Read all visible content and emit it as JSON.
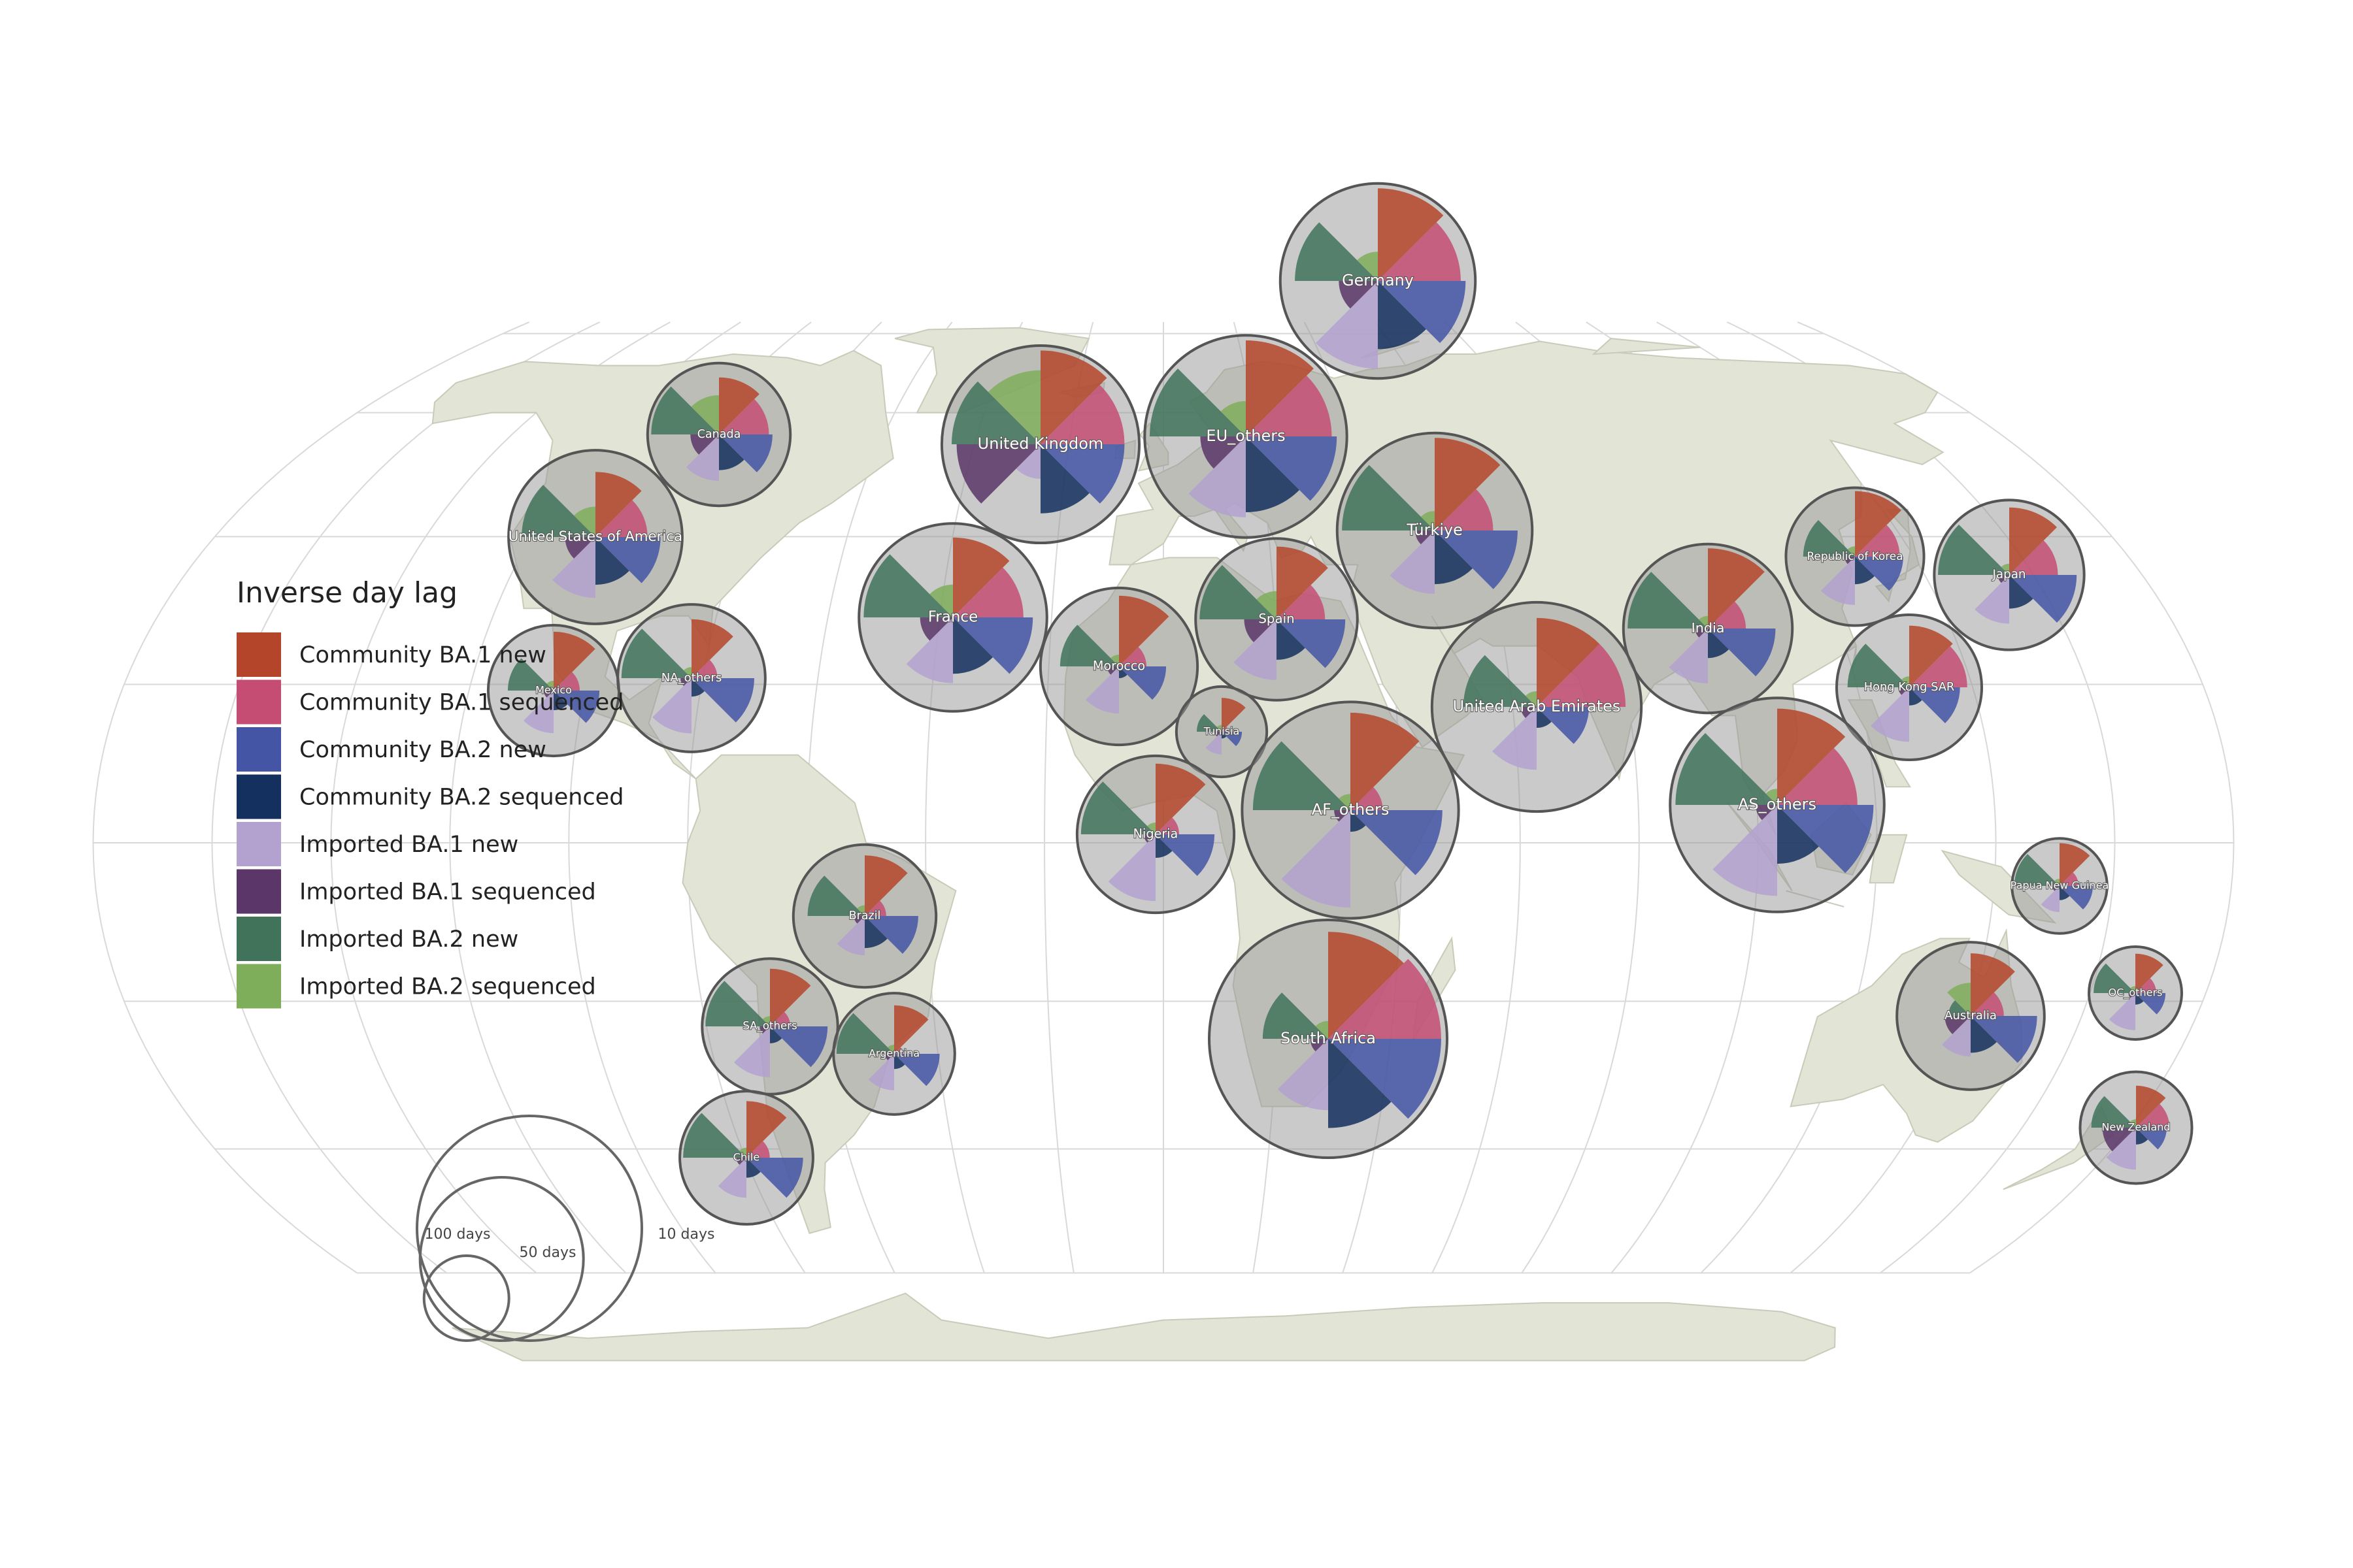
{
  "legend": {
    "title": "Inverse day lag",
    "items": [
      {
        "label": "Community BA.1 new",
        "color": "#b5452a"
      },
      {
        "label": "Community BA.1 sequenced",
        "color": "#c54d74"
      },
      {
        "label": "Community BA.2 new",
        "color": "#4455a6"
      },
      {
        "label": "Community BA.2 sequenced",
        "color": "#14305e"
      },
      {
        "label": "Imported BA.1 new",
        "color": "#b3a2cf"
      },
      {
        "label": "Imported BA.1 sequenced",
        "color": "#5a3669"
      },
      {
        "label": "Imported BA.2 new",
        "color": "#41735a"
      },
      {
        "label": "Imported BA.2 sequenced",
        "color": "#7fae5a"
      }
    ]
  },
  "size_legend": [
    {
      "label": "100 days",
      "value": 100
    },
    {
      "label": "50 days",
      "value": 50
    },
    {
      "label": "10 days",
      "value": 10
    }
  ],
  "regions": [
    {
      "name": "Germany",
      "lon": 10.5,
      "lat": 51.2,
      "total": 0.82,
      "slices": [
        0.95,
        0.85,
        0.9,
        0.7,
        0.9,
        0.4,
        0.85,
        0.3
      ]
    },
    {
      "name": "Canada",
      "lon": -100,
      "lat": 57,
      "total": 0.6,
      "slices": [
        0.8,
        0.7,
        0.75,
        0.5,
        0.65,
        0.4,
        0.95,
        0.55
      ]
    },
    {
      "name": "United Kingdom",
      "lon": -2,
      "lat": 54,
      "total": 0.83,
      "slices": [
        0.95,
        0.85,
        0.85,
        0.7,
        0.35,
        0.85,
        0.9,
        0.75
      ]
    },
    {
      "name": "EU_others",
      "lon": 15,
      "lat": 50,
      "total": 0.85,
      "slices": [
        0.95,
        0.85,
        0.9,
        0.75,
        0.8,
        0.45,
        0.95,
        0.35
      ]
    },
    {
      "name": "United States of America",
      "lon": -98,
      "lat": 39,
      "total": 0.73,
      "slices": [
        0.75,
        0.6,
        0.75,
        0.55,
        0.7,
        0.35,
        0.85,
        0.35
      ]
    },
    {
      "name": "France",
      "lon": 2.5,
      "lat": 46.5,
      "total": 0.79,
      "slices": [
        0.85,
        0.75,
        0.85,
        0.6,
        0.7,
        0.35,
        0.95,
        0.35
      ]
    },
    {
      "name": "Türkiye",
      "lon": 35,
      "lat": 39,
      "total": 0.82,
      "slices": [
        0.95,
        0.6,
        0.85,
        0.55,
        0.65,
        0.2,
        0.95,
        0.2
      ]
    },
    {
      "name": "Spain",
      "lon": -4,
      "lat": 40,
      "total": 0.68,
      "slices": [
        0.9,
        0.6,
        0.85,
        0.5,
        0.75,
        0.4,
        0.95,
        0.35
      ]
    },
    {
      "name": "Morocco",
      "lon": -6,
      "lat": 32,
      "total": 0.66,
      "slices": [
        0.9,
        0.35,
        0.6,
        0.15,
        0.6,
        0.15,
        0.75,
        0.15
      ]
    },
    {
      "name": "Republic of Korea",
      "lon": 127.8,
      "lat": 36.3,
      "total": 0.58,
      "slices": [
        0.95,
        0.65,
        0.7,
        0.4,
        0.7,
        0.15,
        0.75,
        0.15
      ]
    },
    {
      "name": "Japan",
      "lon": 138,
      "lat": 36,
      "total": 0.63,
      "slices": [
        0.9,
        0.65,
        0.9,
        0.45,
        0.65,
        0.15,
        0.95,
        0.15
      ]
    },
    {
      "name": "India",
      "lon": 79,
      "lat": 22,
      "total": 0.71,
      "slices": [
        0.95,
        0.45,
        0.8,
        0.35,
        0.65,
        0.15,
        0.95,
        0.15
      ]
    },
    {
      "name": "Mexico",
      "lon": -102,
      "lat": 23,
      "total": 0.55,
      "slices": [
        0.9,
        0.4,
        0.7,
        0.3,
        0.65,
        0.15,
        0.7,
        0.15
      ]
    },
    {
      "name": "NA_others",
      "lon": -85,
      "lat": 15,
      "total": 0.62,
      "slices": [
        0.8,
        0.35,
        0.85,
        0.25,
        0.75,
        0.15,
        0.95,
        0.15
      ]
    },
    {
      "name": "United Arab Emirates",
      "lon": 54,
      "lat": 24,
      "total": 0.88,
      "slices": [
        0.85,
        0.85,
        0.5,
        0.2,
        0.6,
        0.15,
        0.7,
        0.15
      ]
    },
    {
      "name": "Hong Kong SAR",
      "lon": 114.2,
      "lat": 22.3,
      "total": 0.61,
      "slices": [
        0.85,
        0.8,
        0.7,
        0.25,
        0.75,
        0.15,
        0.85,
        0.15
      ]
    },
    {
      "name": "Tunisia",
      "lon": 9.5,
      "lat": 34,
      "total": 0.38,
      "slices": [
        0.75,
        0.15,
        0.45,
        0.15,
        0.5,
        0.15,
        0.55,
        0.15
      ]
    },
    {
      "name": "Nigeria",
      "lon": 8,
      "lat": 9.5,
      "total": 0.66,
      "slices": [
        0.9,
        0.3,
        0.75,
        0.3,
        0.85,
        0.15,
        0.95,
        0.15
      ]
    },
    {
      "name": "AF_others",
      "lon": 20,
      "lat": 2,
      "total": 0.91,
      "slices": [
        0.9,
        0.3,
        0.85,
        0.2,
        0.9,
        0.15,
        0.9,
        0.15
      ]
    },
    {
      "name": "AS_others",
      "lon": 105,
      "lat": 15,
      "total": 0.9,
      "slices": [
        0.9,
        0.75,
        0.9,
        0.55,
        0.85,
        0.2,
        0.95,
        0.15
      ]
    },
    {
      "name": "Brazil",
      "lon": -52,
      "lat": -10,
      "total": 0.6,
      "slices": [
        0.85,
        0.3,
        0.75,
        0.45,
        0.55,
        0.15,
        0.8,
        0.15
      ]
    },
    {
      "name": "Papua New Guinea",
      "lon": 145,
      "lat": -6.5,
      "total": 0.4,
      "slices": [
        0.9,
        0.4,
        0.7,
        0.3,
        0.55,
        0.15,
        0.95,
        0.15
      ]
    },
    {
      "name": "SA_others",
      "lon": -65,
      "lat": -18,
      "total": 0.57,
      "slices": [
        0.85,
        0.3,
        0.85,
        0.25,
        0.75,
        0.15,
        0.95,
        0.15
      ]
    },
    {
      "name": "Argentina",
      "lon": -64,
      "lat": -34,
      "total": 0.51,
      "slices": [
        0.8,
        0.15,
        0.75,
        0.25,
        0.6,
        0.15,
        0.95,
        0.15
      ]
    },
    {
      "name": "South Africa",
      "lon": 24,
      "lat": -29,
      "total": 1.0,
      "slices": [
        0.9,
        0.95,
        0.95,
        0.75,
        0.6,
        0.15,
        0.55,
        0.15
      ]
    },
    {
      "name": "Australia",
      "lon": 134,
      "lat": -25,
      "total": 0.62,
      "slices": [
        0.85,
        0.45,
        0.9,
        0.5,
        0.55,
        0.35,
        0.3,
        0.45
      ]
    },
    {
      "name": "OC_others",
      "lon": 172,
      "lat": -15,
      "total": 0.39,
      "slices": [
        0.85,
        0.45,
        0.65,
        0.25,
        0.8,
        0.15,
        0.9,
        0.15
      ]
    },
    {
      "name": "Chile",
      "lon": -71,
      "lat": -35,
      "total": 0.56,
      "slices": [
        0.85,
        0.35,
        0.85,
        0.3,
        0.6,
        0.15,
        0.95,
        0.15
      ]
    },
    {
      "name": "New Zealand",
      "lon": 172,
      "lat": -41,
      "total": 0.47,
      "slices": [
        0.75,
        0.6,
        0.55,
        0.3,
        0.75,
        0.6,
        0.8,
        0.15
      ]
    }
  ]
}
